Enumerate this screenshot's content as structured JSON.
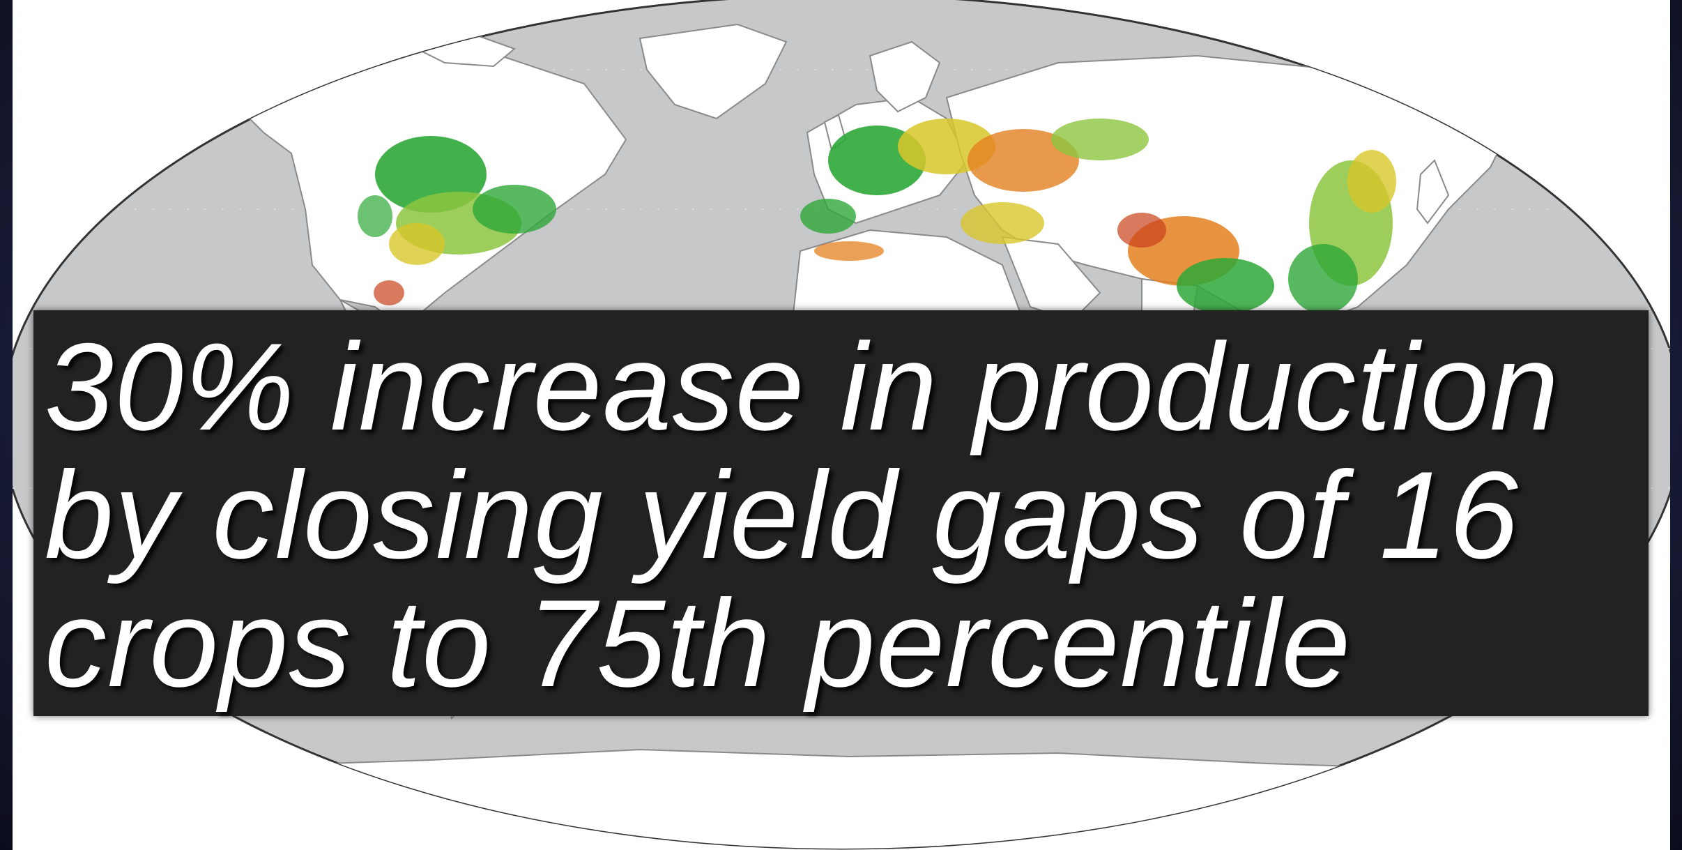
{
  "caption": {
    "text": "30% increase in production by closing yield gaps of 16 crops to 75th percentile"
  },
  "map": {
    "ocean_color": "#c7c8ca",
    "land_color": "#ffffff",
    "border_color": "#8a8a8a",
    "yield_gap_palette": [
      "#2ea838",
      "#8cc63f",
      "#d8c72a",
      "#e4801f",
      "#c9401a"
    ]
  }
}
